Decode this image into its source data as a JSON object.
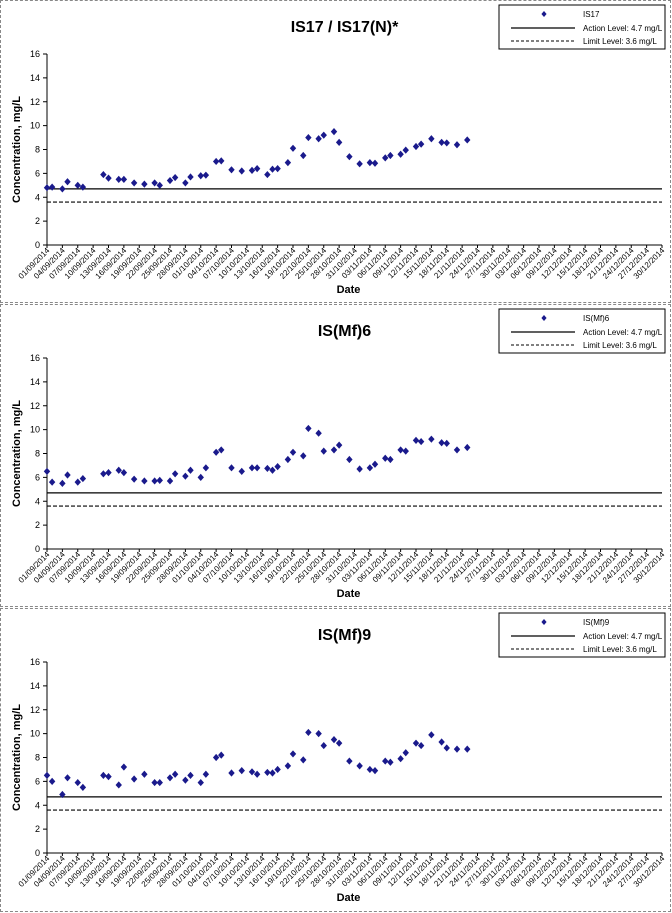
{
  "x_dates": [
    "01/09/2014",
    "04/09/2014",
    "07/09/2014",
    "10/09/2014",
    "13/09/2014",
    "16/09/2014",
    "19/09/2014",
    "22/09/2014",
    "25/09/2014",
    "28/09/2014",
    "01/10/2014",
    "04/10/2014",
    "07/10/2014",
    "10/10/2014",
    "13/10/2014",
    "16/10/2014",
    "19/10/2014",
    "22/10/2014",
    "25/10/2014",
    "28/10/2014",
    "31/10/2014",
    "03/11/2014",
    "06/11/2014",
    "09/11/2014",
    "12/11/2014",
    "15/11/2014",
    "18/11/2014",
    "21/11/2014",
    "24/11/2014",
    "27/11/2014",
    "30/11/2014",
    "03/12/2014",
    "06/12/2014",
    "09/12/2014",
    "12/12/2014",
    "15/12/2014",
    "18/12/2014",
    "21/12/2014",
    "24/12/2014",
    "27/12/2014",
    "30/12/2014"
  ],
  "chart_data": [
    {
      "type": "scatter",
      "title": "IS17 / IS17(N)*",
      "xlabel": "Date",
      "ylabel": "Concentration, mg/L",
      "ylim": [
        0,
        16
      ],
      "yticks": [
        "0",
        "2",
        "4",
        "6",
        "8",
        "10",
        "12",
        "14",
        "16"
      ],
      "legend": {
        "position": "top-right",
        "series": "IS17",
        "action": "Action Level: 4.7 mg/L",
        "limit": "Limit Level: 3.6 mg/L"
      },
      "action_level": 4.7,
      "limit_level": 3.6,
      "series": [
        {
          "name": "IS17",
          "color": "#1a1a8c",
          "points": [
            [
              "01/09/2014",
              4.8
            ],
            [
              "02/09/2014",
              4.85
            ],
            [
              "04/09/2014",
              4.7
            ],
            [
              "05/09/2014",
              5.3
            ],
            [
              "07/09/2014",
              5.0
            ],
            [
              "08/09/2014",
              4.85
            ],
            [
              "12/09/2014",
              5.9
            ],
            [
              "13/09/2014",
              5.6
            ],
            [
              "15/09/2014",
              5.5
            ],
            [
              "16/09/2014",
              5.5
            ],
            [
              "18/09/2014",
              5.2
            ],
            [
              "20/09/2014",
              5.1
            ],
            [
              "22/09/2014",
              5.2
            ],
            [
              "23/09/2014",
              5.0
            ],
            [
              "25/09/2014",
              5.4
            ],
            [
              "26/09/2014",
              5.65
            ],
            [
              "28/09/2014",
              5.2
            ],
            [
              "29/09/2014",
              5.7
            ],
            [
              "01/10/2014",
              5.8
            ],
            [
              "02/10/2014",
              5.85
            ],
            [
              "04/10/2014",
              7.0
            ],
            [
              "05/10/2014",
              7.05
            ],
            [
              "07/10/2014",
              6.3
            ],
            [
              "09/10/2014",
              6.2
            ],
            [
              "11/10/2014",
              6.25
            ],
            [
              "12/10/2014",
              6.4
            ],
            [
              "14/10/2014",
              5.9
            ],
            [
              "15/10/2014",
              6.35
            ],
            [
              "16/10/2014",
              6.4
            ],
            [
              "18/10/2014",
              6.9
            ],
            [
              "19/10/2014",
              8.1
            ],
            [
              "21/10/2014",
              7.5
            ],
            [
              "22/10/2014",
              9.0
            ],
            [
              "24/10/2014",
              8.9
            ],
            [
              "25/10/2014",
              9.2
            ],
            [
              "27/10/2014",
              9.5
            ],
            [
              "28/10/2014",
              8.6
            ],
            [
              "30/10/2014",
              7.4
            ],
            [
              "01/11/2014",
              6.8
            ],
            [
              "03/11/2014",
              6.9
            ],
            [
              "04/11/2014",
              6.85
            ],
            [
              "06/11/2014",
              7.3
            ],
            [
              "07/11/2014",
              7.5
            ],
            [
              "09/11/2014",
              7.6
            ],
            [
              "10/11/2014",
              7.95
            ],
            [
              "12/11/2014",
              8.25
            ],
            [
              "13/11/2014",
              8.45
            ],
            [
              "15/11/2014",
              8.9
            ],
            [
              "17/11/2014",
              8.6
            ],
            [
              "18/11/2014",
              8.55
            ],
            [
              "20/11/2014",
              8.4
            ],
            [
              "22/11/2014",
              8.8
            ]
          ]
        }
      ]
    },
    {
      "type": "scatter",
      "title": "IS(Mf)6",
      "xlabel": "Date",
      "ylabel": "Concentration, mg/L",
      "ylim": [
        0,
        16
      ],
      "yticks": [
        "0",
        "2",
        "4",
        "6",
        "8",
        "10",
        "12",
        "14",
        "16"
      ],
      "legend": {
        "position": "top-right",
        "series": "IS(Mf)6",
        "action": "Action Level: 4.7 mg/L",
        "limit": "Limit Level: 3.6 mg/L"
      },
      "action_level": 4.7,
      "limit_level": 3.6,
      "series": [
        {
          "name": "IS(Mf)6",
          "color": "#1a1a8c",
          "points": [
            [
              "01/09/2014",
              6.5
            ],
            [
              "02/09/2014",
              5.6
            ],
            [
              "04/09/2014",
              5.5
            ],
            [
              "05/09/2014",
              6.2
            ],
            [
              "07/09/2014",
              5.6
            ],
            [
              "08/09/2014",
              5.9
            ],
            [
              "12/09/2014",
              6.3
            ],
            [
              "13/09/2014",
              6.4
            ],
            [
              "15/09/2014",
              6.6
            ],
            [
              "16/09/2014",
              6.4
            ],
            [
              "18/09/2014",
              5.85
            ],
            [
              "20/09/2014",
              5.7
            ],
            [
              "22/09/2014",
              5.7
            ],
            [
              "23/09/2014",
              5.75
            ],
            [
              "25/09/2014",
              5.7
            ],
            [
              "26/09/2014",
              6.3
            ],
            [
              "28/09/2014",
              6.1
            ],
            [
              "29/09/2014",
              6.6
            ],
            [
              "01/10/2014",
              6.0
            ],
            [
              "02/10/2014",
              6.8
            ],
            [
              "04/10/2014",
              8.1
            ],
            [
              "05/10/2014",
              8.3
            ],
            [
              "07/10/2014",
              6.8
            ],
            [
              "09/10/2014",
              6.5
            ],
            [
              "11/10/2014",
              6.8
            ],
            [
              "12/10/2014",
              6.8
            ],
            [
              "14/10/2014",
              6.75
            ],
            [
              "15/10/2014",
              6.6
            ],
            [
              "16/10/2014",
              6.9
            ],
            [
              "18/10/2014",
              7.5
            ],
            [
              "19/10/2014",
              8.1
            ],
            [
              "21/10/2014",
              7.8
            ],
            [
              "22/10/2014",
              10.1
            ],
            [
              "24/10/2014",
              9.7
            ],
            [
              "25/10/2014",
              8.2
            ],
            [
              "27/10/2014",
              8.3
            ],
            [
              "28/10/2014",
              8.7
            ],
            [
              "30/10/2014",
              7.5
            ],
            [
              "01/11/2014",
              6.7
            ],
            [
              "03/11/2014",
              6.8
            ],
            [
              "04/11/2014",
              7.1
            ],
            [
              "06/11/2014",
              7.6
            ],
            [
              "07/11/2014",
              7.5
            ],
            [
              "09/11/2014",
              8.3
            ],
            [
              "10/11/2014",
              8.2
            ],
            [
              "12/11/2014",
              9.1
            ],
            [
              "13/11/2014",
              9.0
            ],
            [
              "15/11/2014",
              9.2
            ],
            [
              "17/11/2014",
              8.9
            ],
            [
              "18/11/2014",
              8.85
            ],
            [
              "20/11/2014",
              8.3
            ],
            [
              "22/11/2014",
              8.5
            ]
          ]
        }
      ]
    },
    {
      "type": "scatter",
      "title": "IS(Mf)9",
      "xlabel": "Date",
      "ylabel": "Concentration, mg/L",
      "ylim": [
        0,
        16
      ],
      "yticks": [
        "0",
        "2",
        "4",
        "6",
        "8",
        "10",
        "12",
        "14",
        "16"
      ],
      "legend": {
        "position": "top-right",
        "series": "IS(Mf)9",
        "action": "Action Level: 4.7 mg/L",
        "limit": "Limit Level: 3.6 mg/L"
      },
      "action_level": 4.7,
      "limit_level": 3.6,
      "series": [
        {
          "name": "IS(Mf)9",
          "color": "#1a1a8c",
          "points": [
            [
              "01/09/2014",
              6.5
            ],
            [
              "02/09/2014",
              6.0
            ],
            [
              "04/09/2014",
              4.9
            ],
            [
              "05/09/2014",
              6.3
            ],
            [
              "07/09/2014",
              5.9
            ],
            [
              "08/09/2014",
              5.5
            ],
            [
              "12/09/2014",
              6.5
            ],
            [
              "13/09/2014",
              6.4
            ],
            [
              "15/09/2014",
              5.7
            ],
            [
              "16/09/2014",
              7.2
            ],
            [
              "18/09/2014",
              6.2
            ],
            [
              "20/09/2014",
              6.6
            ],
            [
              "22/09/2014",
              5.9
            ],
            [
              "23/09/2014",
              5.9
            ],
            [
              "25/09/2014",
              6.3
            ],
            [
              "26/09/2014",
              6.6
            ],
            [
              "28/09/2014",
              6.1
            ],
            [
              "29/09/2014",
              6.5
            ],
            [
              "01/10/2014",
              5.9
            ],
            [
              "02/10/2014",
              6.6
            ],
            [
              "04/10/2014",
              8.0
            ],
            [
              "05/10/2014",
              8.2
            ],
            [
              "07/10/2014",
              6.7
            ],
            [
              "09/10/2014",
              6.9
            ],
            [
              "11/10/2014",
              6.8
            ],
            [
              "12/10/2014",
              6.6
            ],
            [
              "14/10/2014",
              6.75
            ],
            [
              "15/10/2014",
              6.7
            ],
            [
              "16/10/2014",
              7.0
            ],
            [
              "18/10/2014",
              7.3
            ],
            [
              "19/10/2014",
              8.3
            ],
            [
              "21/10/2014",
              7.8
            ],
            [
              "22/10/2014",
              10.1
            ],
            [
              "24/10/2014",
              10.0
            ],
            [
              "25/10/2014",
              9.0
            ],
            [
              "27/10/2014",
              9.5
            ],
            [
              "28/10/2014",
              9.2
            ],
            [
              "30/10/2014",
              7.7
            ],
            [
              "01/11/2014",
              7.3
            ],
            [
              "03/11/2014",
              7.0
            ],
            [
              "04/11/2014",
              6.9
            ],
            [
              "06/11/2014",
              7.7
            ],
            [
              "07/11/2014",
              7.6
            ],
            [
              "09/11/2014",
              7.9
            ],
            [
              "10/11/2014",
              8.4
            ],
            [
              "12/11/2014",
              9.2
            ],
            [
              "13/11/2014",
              9.0
            ],
            [
              "15/11/2014",
              9.9
            ],
            [
              "17/11/2014",
              9.3
            ],
            [
              "18/11/2014",
              8.8
            ],
            [
              "20/11/2014",
              8.7
            ],
            [
              "22/11/2014",
              8.7
            ]
          ]
        }
      ]
    }
  ]
}
